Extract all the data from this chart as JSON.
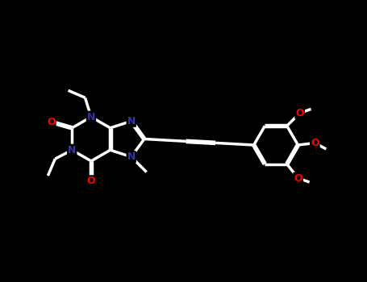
{
  "bg_color": "#000000",
  "bond_color": "#ffffff",
  "nitrogen_color": "#3333aa",
  "oxygen_color": "#ff0000",
  "line_width": 2.5,
  "dbo_ring": 0.022,
  "dbo_exo": 0.022,
  "figsize": [
    4.55,
    3.5
  ],
  "dpi": 100,
  "xlim": [
    0,
    9
  ],
  "ylim": [
    0,
    7
  ],
  "font_size_atom": 9,
  "font_size_small": 7
}
